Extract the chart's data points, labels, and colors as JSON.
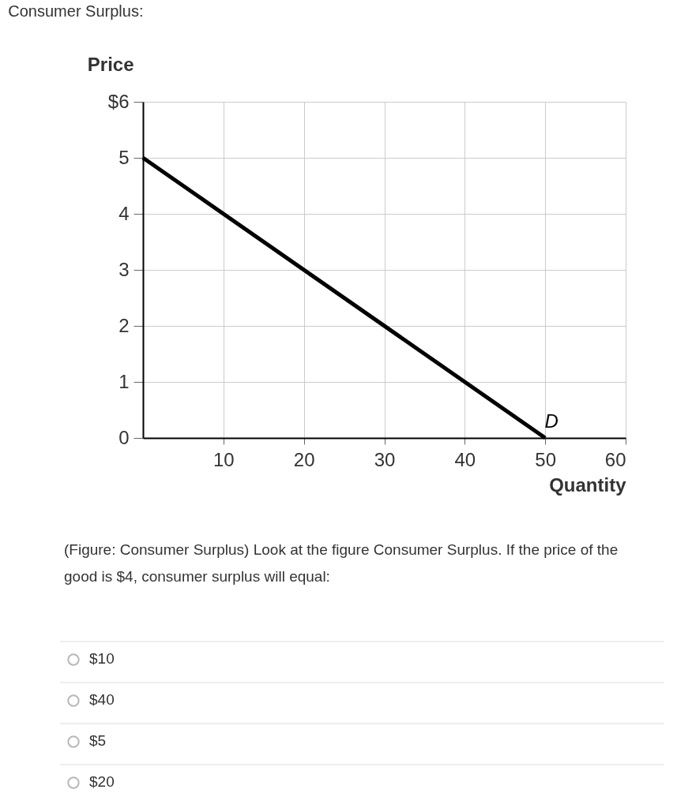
{
  "chart_data": {
    "type": "line",
    "title": "Consumer Surplus:",
    "xlabel": "Quantity",
    "ylabel": "Price",
    "x": [
      0,
      50
    ],
    "values": [
      5,
      0
    ],
    "color": "#000000",
    "xlim": [
      0,
      60
    ],
    "ylim": [
      0,
      6
    ],
    "xticks": [
      10,
      20,
      30,
      40,
      50,
      60
    ],
    "yticks": [
      0,
      1,
      2,
      3,
      4,
      5,
      {
        "value": 6,
        "label": "$6"
      }
    ],
    "grid": true,
    "annotations": [
      "D",
      "(Figure: Consumer Surplus) Look at the figure Consumer Surplus. If the price of the good is $4, consumer surplus will equal:",
      "$10",
      "$40",
      "$5",
      "$20"
    ]
  }
}
